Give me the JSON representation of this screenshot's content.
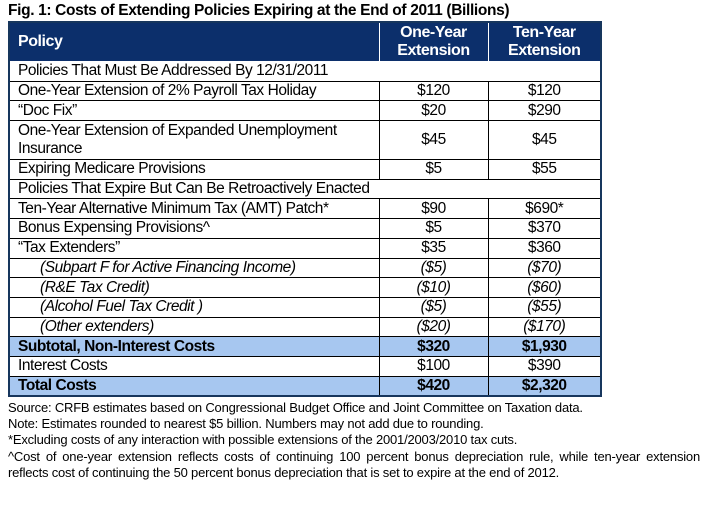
{
  "title": "Fig. 1: Costs of Extending Policies Expiring at the End of 2011 (Billions)",
  "columns": [
    "Policy",
    "One-Year Extension",
    "Ten-Year Extension"
  ],
  "rows": [
    {
      "type": "section",
      "label": "Policies That Must Be Addressed By 12/31/2011"
    },
    {
      "type": "row",
      "label": "One-Year Extension of 2% Payroll Tax Holiday",
      "one": "$120",
      "ten": "$120"
    },
    {
      "type": "row",
      "label": "“Doc Fix”",
      "one": "$20",
      "ten": "$290"
    },
    {
      "type": "two",
      "label": "One-Year Extension of Expanded Unemployment Insurance",
      "one": "$45",
      "ten": "$45"
    },
    {
      "type": "row",
      "label": "Expiring Medicare Provisions",
      "one": "$5",
      "ten": "$55"
    },
    {
      "type": "section",
      "label": "Policies That Expire But Can Be Retroactively Enacted"
    },
    {
      "type": "row",
      "label": "Ten-Year Alternative Minimum Tax (AMT)  Patch*",
      "one": "$90",
      "ten": "$690*"
    },
    {
      "type": "row",
      "label": "Bonus Expensing Provisions^",
      "one": "$5",
      "ten": "$370"
    },
    {
      "type": "row",
      "label": "“Tax Extenders”",
      "one": "$35",
      "ten": "$360"
    },
    {
      "type": "sub",
      "label": "(Subpart F for Active Financing Income)",
      "one": "($5)",
      "ten": "($70)"
    },
    {
      "type": "sub",
      "label": "(R&E Tax Credit)",
      "one": "($10)",
      "ten": "($60)"
    },
    {
      "type": "sub",
      "label": "(Alcohol Fuel Tax Credit )",
      "one": "($5)",
      "ten": "($55)"
    },
    {
      "type": "sub",
      "label": "(Other extenders)",
      "one": "($20)",
      "ten": "($170)"
    },
    {
      "type": "tot",
      "label": "Subtotal, Non-Interest Costs",
      "one": "$320",
      "ten": "$1,930"
    },
    {
      "type": "row",
      "label": "Interest Costs",
      "one": "$100",
      "ten": "$390"
    },
    {
      "type": "tot",
      "label": "Total Costs",
      "one": "$420",
      "ten": "$2,320"
    }
  ],
  "notes": [
    "Source: CRFB estimates based on Congressional Budget Office and Joint Committee on Taxation data.",
    "Note: Estimates rounded to nearest $5 billion. Numbers may not add due to rounding.",
    "*Excluding costs of any interaction with possible extensions of the 2001/2003/2010 tax cuts.",
    "^Cost of one-year extension reflects costs of continuing 100 percent bonus depreciation rule, while ten-year extension reflects cost of continuing the 50 percent bonus depreciation that is set to expire at the end of 2012."
  ],
  "colors": {
    "header": "#0c2f6b",
    "section": "#a7c7f0"
  }
}
